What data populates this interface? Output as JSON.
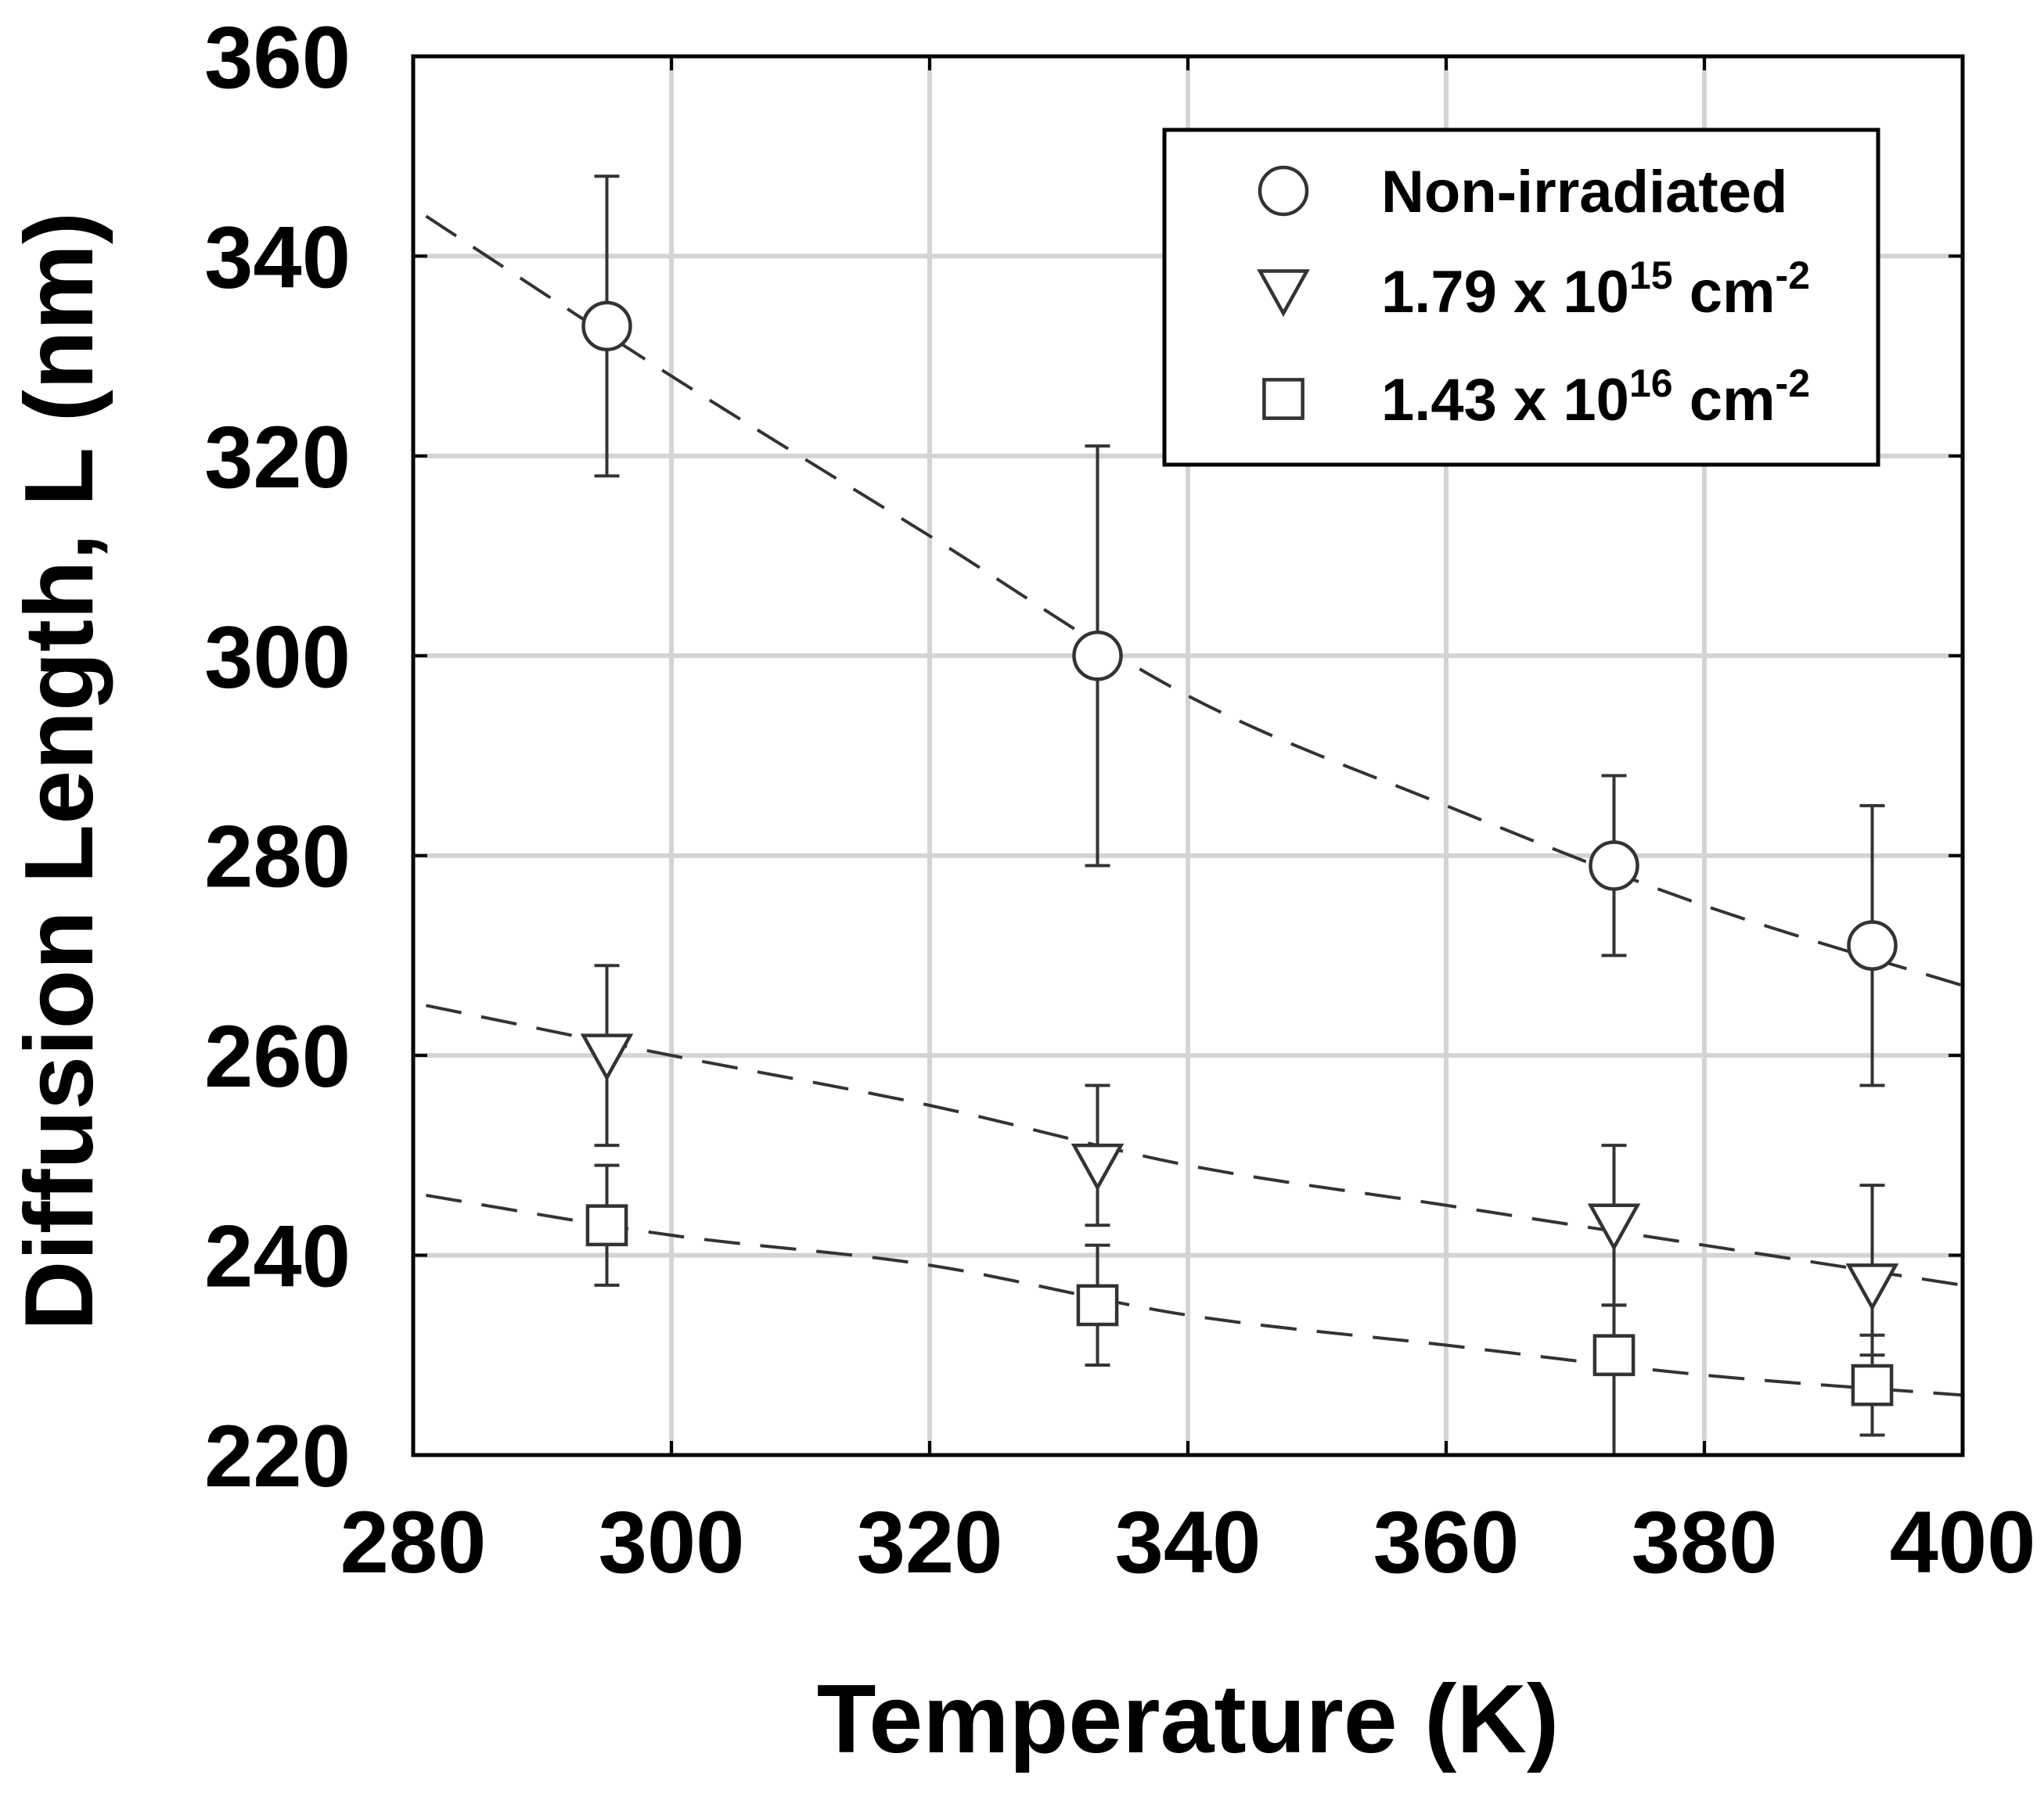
{
  "chart_data": {
    "type": "scatter",
    "title": "",
    "xlabel": "Temperature (K)",
    "ylabel": "Diffusion Length, L (nm)",
    "xlim": [
      280,
      400
    ],
    "ylim": [
      220,
      360
    ],
    "xticks": [
      280,
      300,
      320,
      340,
      360,
      380,
      400
    ],
    "yticks": [
      220,
      240,
      260,
      280,
      300,
      320,
      340,
      360
    ],
    "grid": true,
    "legend_position": "top-right",
    "series": [
      {
        "name": "Non-irradiated",
        "legend_label": {
          "mantissa": "Non-irradiated",
          "exponent": "",
          "unit": "",
          "unit_exponent": ""
        },
        "marker": "circle",
        "points": [
          {
            "x": 295,
            "y": 333,
            "err_low": 318,
            "err_high": 348
          },
          {
            "x": 333,
            "y": 300,
            "err_low": 279,
            "err_high": 321
          },
          {
            "x": 373,
            "y": 279,
            "err_low": 270,
            "err_high": 288
          },
          {
            "x": 393,
            "y": 271,
            "err_low": 257,
            "err_high": 285
          }
        ],
        "fit": [
          {
            "x": 281,
            "y": 344
          },
          {
            "x": 300,
            "y": 328
          },
          {
            "x": 320,
            "y": 312
          },
          {
            "x": 340,
            "y": 296
          },
          {
            "x": 360,
            "y": 285
          },
          {
            "x": 380,
            "y": 275
          },
          {
            "x": 400,
            "y": 267
          }
        ]
      },
      {
        "name": "1.79 x 10^15 cm^-2",
        "legend_label": {
          "mantissa": "1.79 x 10",
          "exponent": "15",
          "unit": " cm",
          "unit_exponent": "-2"
        },
        "marker": "triangle-down",
        "points": [
          {
            "x": 295,
            "y": 260,
            "err_low": 251,
            "err_high": 269
          },
          {
            "x": 333,
            "y": 249,
            "err_low": 243,
            "err_high": 257
          },
          {
            "x": 373,
            "y": 243,
            "err_low": 235,
            "err_high": 251
          },
          {
            "x": 393,
            "y": 237,
            "err_low": 230,
            "err_high": 247
          }
        ],
        "fit": [
          {
            "x": 281,
            "y": 265
          },
          {
            "x": 300,
            "y": 260
          },
          {
            "x": 320,
            "y": 255
          },
          {
            "x": 340,
            "y": 249
          },
          {
            "x": 360,
            "y": 245
          },
          {
            "x": 380,
            "y": 241
          },
          {
            "x": 400,
            "y": 237
          }
        ]
      },
      {
        "name": "1.43 x 10^16 cm^-2",
        "legend_label": {
          "mantissa": "1.43 x 10",
          "exponent": "16",
          "unit": " cm",
          "unit_exponent": "-2"
        },
        "marker": "square",
        "points": [
          {
            "x": 295,
            "y": 243,
            "err_low": 237,
            "err_high": 249
          },
          {
            "x": 333,
            "y": 235,
            "err_low": 229,
            "err_high": 241
          },
          {
            "x": 373,
            "y": 230,
            "err_low": 220,
            "err_high": 235
          },
          {
            "x": 393,
            "y": 227,
            "err_low": 222,
            "err_high": 232
          }
        ],
        "fit": [
          {
            "x": 281,
            "y": 246
          },
          {
            "x": 300,
            "y": 242
          },
          {
            "x": 320,
            "y": 239
          },
          {
            "x": 340,
            "y": 234
          },
          {
            "x": 360,
            "y": 231
          },
          {
            "x": 380,
            "y": 228
          },
          {
            "x": 400,
            "y": 226
          }
        ]
      }
    ]
  }
}
